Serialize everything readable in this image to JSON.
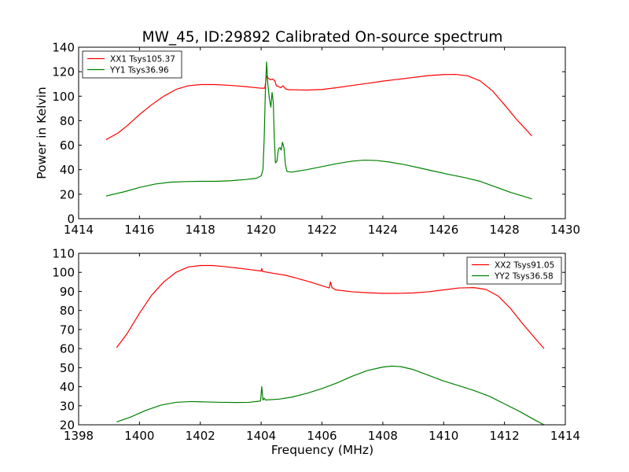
{
  "figure": {
    "title": "MW_45, ID:29892 Calibrated On-source spectrum",
    "ylabel": "Power in Kelvin",
    "xlabel": "Frequency (MHz)"
  },
  "chart_data": [
    {
      "type": "line",
      "title": "MW_45, ID:29892 Calibrated On-source spectrum",
      "xlabel": "",
      "ylabel": "Power in Kelvin",
      "xlim": [
        1414,
        1430
      ],
      "ylim": [
        0,
        140
      ],
      "xticks": [
        "1414",
        "1416",
        "1418",
        "1420",
        "1422",
        "1424",
        "1426",
        "1428",
        "1430"
      ],
      "yticks": [
        "0",
        "20",
        "40",
        "60",
        "80",
        "100",
        "120",
        "140"
      ],
      "grid": false,
      "legend": "top-left",
      "series": [
        {
          "name": "XX1 Tsys105.37",
          "color": "#ff0000",
          "points": [
            [
              1414.9,
              64.5
            ],
            [
              1415.3,
              70
            ],
            [
              1415.6,
              76
            ],
            [
              1416.0,
              85
            ],
            [
              1416.4,
              93
            ],
            [
              1416.8,
              100
            ],
            [
              1417.2,
              105.5
            ],
            [
              1417.6,
              108.5
            ],
            [
              1418.0,
              109.5
            ],
            [
              1418.5,
              109.5
            ],
            [
              1419.0,
              108.8
            ],
            [
              1419.5,
              107.8
            ],
            [
              1420.0,
              106.5
            ],
            [
              1420.12,
              106.5
            ],
            [
              1420.18,
              116.5
            ],
            [
              1420.22,
              115
            ],
            [
              1420.3,
              113.5
            ],
            [
              1420.38,
              114
            ],
            [
              1420.45,
              112.5
            ],
            [
              1420.5,
              108.5
            ],
            [
              1420.56,
              108
            ],
            [
              1420.65,
              107
            ],
            [
              1420.72,
              108.5
            ],
            [
              1420.8,
              106
            ],
            [
              1420.9,
              105.3
            ],
            [
              1421.5,
              105
            ],
            [
              1422.0,
              105.5
            ],
            [
              1422.5,
              107
            ],
            [
              1423.0,
              108.8
            ],
            [
              1423.5,
              110.5
            ],
            [
              1424.0,
              112.3
            ],
            [
              1424.5,
              113.8
            ],
            [
              1425.0,
              115.3
            ],
            [
              1425.5,
              116.8
            ],
            [
              1426.0,
              117.7
            ],
            [
              1426.4,
              117.8
            ],
            [
              1426.8,
              116.5
            ],
            [
              1427.2,
              112.5
            ],
            [
              1427.6,
              104.5
            ],
            [
              1428.0,
              93
            ],
            [
              1428.4,
              81
            ],
            [
              1428.7,
              73
            ],
            [
              1428.9,
              67.5
            ]
          ]
        },
        {
          "name": "YY1 Tsys36.96",
          "color": "#008000",
          "points": [
            [
              1414.9,
              18.5
            ],
            [
              1415.5,
              22
            ],
            [
              1416.0,
              25.5
            ],
            [
              1416.5,
              28.2
            ],
            [
              1417.0,
              29.8
            ],
            [
              1417.5,
              30.3
            ],
            [
              1418.0,
              30.5
            ],
            [
              1418.5,
              30.5
            ],
            [
              1419.0,
              31
            ],
            [
              1419.5,
              32
            ],
            [
              1419.85,
              33
            ],
            [
              1420.0,
              35
            ],
            [
              1420.06,
              40
            ],
            [
              1420.1,
              65
            ],
            [
              1420.14,
              105
            ],
            [
              1420.18,
              128
            ],
            [
              1420.22,
              110
            ],
            [
              1420.27,
              98
            ],
            [
              1420.32,
              91
            ],
            [
              1420.36,
              103
            ],
            [
              1420.4,
              95
            ],
            [
              1420.43,
              68
            ],
            [
              1420.47,
              45.5
            ],
            [
              1420.52,
              47
            ],
            [
              1420.57,
              57
            ],
            [
              1420.62,
              58
            ],
            [
              1420.66,
              56
            ],
            [
              1420.7,
              62.5
            ],
            [
              1420.75,
              58
            ],
            [
              1420.8,
              44
            ],
            [
              1420.85,
              38.5
            ],
            [
              1421.0,
              38
            ],
            [
              1421.5,
              40
            ],
            [
              1422.0,
              42.5
            ],
            [
              1422.5,
              45
            ],
            [
              1423.0,
              47
            ],
            [
              1423.4,
              47.8
            ],
            [
              1423.8,
              47.5
            ],
            [
              1424.2,
              46.3
            ],
            [
              1424.7,
              44.2
            ],
            [
              1425.2,
              41.5
            ],
            [
              1425.7,
              38.7
            ],
            [
              1426.2,
              36
            ],
            [
              1426.7,
              33.5
            ],
            [
              1427.2,
              30.5
            ],
            [
              1427.7,
              26
            ],
            [
              1428.2,
              21.5
            ],
            [
              1428.6,
              18.5
            ],
            [
              1428.9,
              16.2
            ]
          ]
        }
      ]
    },
    {
      "type": "line",
      "title": "",
      "xlabel": "Frequency (MHz)",
      "ylabel": "",
      "xlim": [
        1398,
        1414
      ],
      "ylim": [
        20,
        110
      ],
      "xticks": [
        "1398",
        "1400",
        "1402",
        "1404",
        "1406",
        "1408",
        "1410",
        "1412",
        "1414"
      ],
      "yticks": [
        "20",
        "30",
        "40",
        "50",
        "60",
        "70",
        "80",
        "90",
        "100",
        "110"
      ],
      "grid": false,
      "legend": "top-right",
      "series": [
        {
          "name": "XX2 Tsys91.05",
          "color": "#ff0000",
          "points": [
            [
              1399.25,
              60.5
            ],
            [
              1399.6,
              68
            ],
            [
              1400.0,
              78.5
            ],
            [
              1400.4,
              88
            ],
            [
              1400.8,
              95
            ],
            [
              1401.2,
              100
            ],
            [
              1401.6,
              102.8
            ],
            [
              1402.0,
              103.6
            ],
            [
              1402.4,
              103.6
            ],
            [
              1402.8,
              103
            ],
            [
              1403.2,
              102.3
            ],
            [
              1403.6,
              101.5
            ],
            [
              1404.0,
              100.7
            ],
            [
              1404.02,
              102
            ],
            [
              1404.05,
              100.5
            ],
            [
              1404.4,
              99.5
            ],
            [
              1404.8,
              98.5
            ],
            [
              1405.2,
              96.8
            ],
            [
              1405.6,
              95
            ],
            [
              1406.0,
              93
            ],
            [
              1406.24,
              91.8
            ],
            [
              1406.28,
              95
            ],
            [
              1406.33,
              92
            ],
            [
              1406.45,
              90.8
            ],
            [
              1407.0,
              89.8
            ],
            [
              1407.5,
              89.3
            ],
            [
              1408.0,
              89
            ],
            [
              1408.5,
              89
            ],
            [
              1409.0,
              89.2
            ],
            [
              1409.5,
              89.8
            ],
            [
              1410.0,
              90.8
            ],
            [
              1410.5,
              91.8
            ],
            [
              1411.0,
              92
            ],
            [
              1411.4,
              91
            ],
            [
              1411.8,
              87.5
            ],
            [
              1412.2,
              81
            ],
            [
              1412.6,
              73
            ],
            [
              1413.0,
              65.5
            ],
            [
              1413.3,
              60
            ]
          ]
        },
        {
          "name": "YY2 Tsys36.58",
          "color": "#008000",
          "points": [
            [
              1399.25,
              21.5
            ],
            [
              1399.7,
              24
            ],
            [
              1400.2,
              27.5
            ],
            [
              1400.7,
              30.3
            ],
            [
              1401.2,
              31.8
            ],
            [
              1401.7,
              32.2
            ],
            [
              1402.2,
              32
            ],
            [
              1402.7,
              31.8
            ],
            [
              1403.2,
              31.7
            ],
            [
              1403.6,
              31.8
            ],
            [
              1403.98,
              32.5
            ],
            [
              1404.02,
              40
            ],
            [
              1404.06,
              33
            ],
            [
              1404.1,
              34
            ],
            [
              1404.14,
              33
            ],
            [
              1404.6,
              33.5
            ],
            [
              1405.0,
              34.5
            ],
            [
              1405.5,
              36.5
            ],
            [
              1406.0,
              39
            ],
            [
              1406.5,
              42
            ],
            [
              1407.0,
              45.5
            ],
            [
              1407.5,
              48.5
            ],
            [
              1408.0,
              50.3
            ],
            [
              1408.3,
              50.8
            ],
            [
              1408.6,
              50.5
            ],
            [
              1409.0,
              49
            ],
            [
              1409.5,
              46
            ],
            [
              1410.0,
              43
            ],
            [
              1410.5,
              40.5
            ],
            [
              1411.0,
              38
            ],
            [
              1411.5,
              35
            ],
            [
              1412.0,
              31
            ],
            [
              1412.5,
              27
            ],
            [
              1413.0,
              22.5
            ],
            [
              1413.3,
              20
            ]
          ]
        }
      ]
    }
  ]
}
